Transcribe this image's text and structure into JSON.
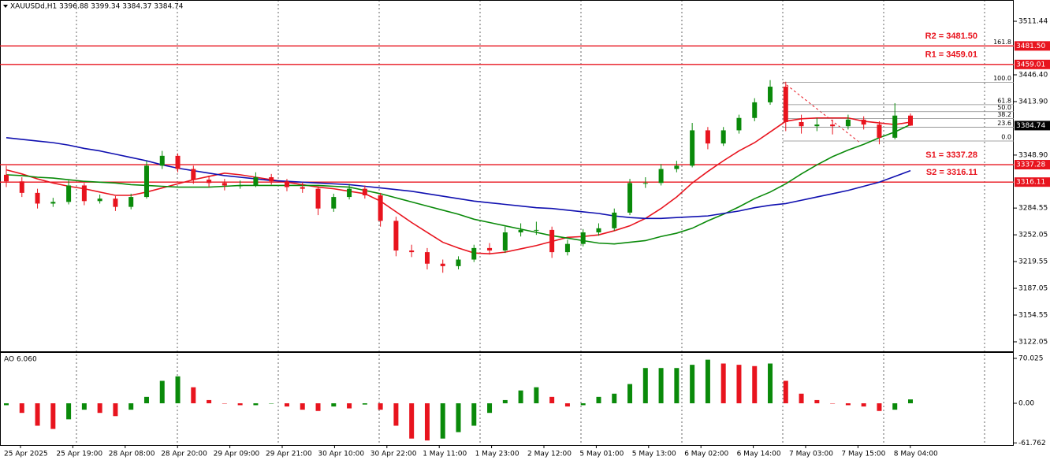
{
  "chart_data": {
    "type": "candlestick",
    "header": "XAUUSDd,H1  3396.88 3399.34 3384.37 3384.74",
    "ylim": [
      3111.5,
      3537.3
    ],
    "yticks": [
      3511.44,
      {
        "value": 3446.4,
        "label": "3446.40"
      },
      {
        "value": 3413.9,
        "label": "3413.90"
      },
      {
        "value": 3348.9,
        "label": "3348.90"
      },
      3284.55,
      3252.05,
      3219.55,
      3187.05,
      3154.55,
      3122.05
    ],
    "time_labels": [
      "25 Apr 2025",
      "25 Apr 19:00",
      "28 Apr 08:00",
      "28 Apr 20:00",
      "29 Apr 09:00",
      "29 Apr 21:00",
      "30 Apr 10:00",
      "30 Apr 22:00",
      "1 May 11:00",
      "1 May 23:00",
      "2 May 12:00",
      "5 May 01:00",
      "5 May 13:00",
      "6 May 02:00",
      "6 May 14:00",
      "7 May 03:00",
      "7 May 15:00",
      "8 May 04:00"
    ],
    "up_color": "#0a8a0a",
    "down_color": "#e8141e",
    "candles": [
      [
        3325,
        3336,
        3310,
        3317
      ],
      [
        3317,
        3322,
        3298,
        3303
      ],
      [
        3303,
        3308,
        3284,
        3290
      ],
      [
        3290,
        3297,
        3286,
        3292
      ],
      [
        3292,
        3318,
        3289,
        3312
      ],
      [
        3312,
        3315,
        3288,
        3293
      ],
      [
        3293,
        3301,
        3290,
        3296
      ],
      [
        3296,
        3299,
        3281,
        3286
      ],
      [
        3286,
        3302,
        3283,
        3298
      ],
      [
        3298,
        3342,
        3296,
        3336
      ],
      [
        3336,
        3354,
        3332,
        3348
      ],
      [
        3348,
        3351,
        3328,
        3332
      ],
      [
        3332,
        3336,
        3314,
        3319
      ],
      [
        3319,
        3324,
        3310,
        3315
      ],
      [
        3315,
        3320,
        3306,
        3312
      ],
      [
        3312,
        3318,
        3308,
        3312
      ],
      [
        3312,
        3328,
        3310,
        3322
      ],
      [
        3322,
        3326,
        3313,
        3317
      ],
      [
        3317,
        3320,
        3305,
        3310
      ],
      [
        3310,
        3316,
        3303,
        3308
      ],
      [
        3308,
        3311,
        3276,
        3284
      ],
      [
        3284,
        3302,
        3280,
        3298
      ],
      [
        3298,
        3314,
        3295,
        3308
      ],
      [
        3308,
        3312,
        3296,
        3300
      ],
      [
        3300,
        3303,
        3262,
        3269
      ],
      [
        3269,
        3274,
        3226,
        3233
      ],
      [
        3233,
        3240,
        3225,
        3231
      ],
      [
        3231,
        3236,
        3210,
        3217
      ],
      [
        3217,
        3222,
        3206,
        3214
      ],
      [
        3214,
        3226,
        3210,
        3222
      ],
      [
        3222,
        3240,
        3219,
        3236
      ],
      [
        3236,
        3242,
        3228,
        3233
      ],
      [
        3233,
        3262,
        3230,
        3255
      ],
      [
        3255,
        3266,
        3250,
        3258
      ],
      [
        3258,
        3268,
        3252,
        3258
      ],
      [
        3258,
        3262,
        3224,
        3231
      ],
      [
        3231,
        3246,
        3227,
        3241
      ],
      [
        3241,
        3259,
        3238,
        3255
      ],
      [
        3255,
        3266,
        3251,
        3260
      ],
      [
        3260,
        3284,
        3257,
        3279
      ],
      [
        3279,
        3320,
        3276,
        3315
      ],
      [
        3315,
        3322,
        3309,
        3315
      ],
      [
        3315,
        3338,
        3312,
        3332
      ],
      [
        3332,
        3342,
        3328,
        3336
      ],
      [
        3336,
        3388,
        3334,
        3379
      ],
      [
        3379,
        3383,
        3356,
        3363
      ],
      [
        3363,
        3383,
        3360,
        3379
      ],
      [
        3379,
        3398,
        3375,
        3394
      ],
      [
        3394,
        3418,
        3390,
        3413
      ],
      [
        3413,
        3440,
        3410,
        3432
      ],
      [
        3432,
        3438,
        3378,
        3389
      ],
      [
        3389,
        3398,
        3375,
        3384
      ],
      [
        3384,
        3394,
        3378,
        3386
      ],
      [
        3386,
        3392,
        3374,
        3384
      ],
      [
        3384,
        3398,
        3380,
        3392
      ],
      [
        3392,
        3396,
        3380,
        3386
      ],
      [
        3386,
        3390,
        3362,
        3370
      ],
      [
        3370,
        3412,
        3368,
        3396.88
      ],
      [
        3396.88,
        3399.34,
        3384.37,
        3384.74
      ]
    ],
    "series": [
      {
        "color": "#e8141e",
        "values": [
          3331,
          3326,
          3320,
          3315,
          3311,
          3308,
          3304,
          3300,
          3300,
          3304,
          3309,
          3314,
          3319,
          3323,
          3327,
          3325,
          3322,
          3319,
          3316,
          3313,
          3310,
          3308,
          3305,
          3302,
          3293,
          3280,
          3267,
          3255,
          3243,
          3236,
          3230,
          3229,
          3231,
          3235,
          3239,
          3244,
          3249,
          3250,
          3252,
          3257,
          3263,
          3272,
          3284,
          3298,
          3315,
          3329,
          3342,
          3354,
          3364,
          3377,
          3390,
          3393,
          3394,
          3394,
          3394,
          3390,
          3388,
          3386,
          3389
        ]
      },
      {
        "color": "#0a8a0a",
        "values": [
          3325,
          3324,
          3322,
          3321,
          3319,
          3317,
          3316,
          3315,
          3313,
          3312,
          3311,
          3310,
          3310,
          3310,
          3311,
          3312,
          3312,
          3312,
          3312,
          3312,
          3312,
          3311,
          3310,
          3306,
          3302,
          3297,
          3292,
          3287,
          3282,
          3277,
          3271,
          3267,
          3263,
          3259,
          3255,
          3251,
          3248,
          3245,
          3242,
          3241,
          3243,
          3245,
          3250,
          3254,
          3260,
          3269,
          3277,
          3286,
          3296,
          3304,
          3314,
          3326,
          3337,
          3347,
          3355,
          3362,
          3370,
          3377,
          3386
        ]
      },
      {
        "color": "#1010b0",
        "values": [
          3370,
          3368,
          3366,
          3364,
          3361,
          3357,
          3354,
          3350,
          3346,
          3342,
          3337,
          3333,
          3330,
          3327,
          3324,
          3322,
          3320,
          3318,
          3317,
          3316,
          3315,
          3314,
          3313,
          3311,
          3309,
          3307,
          3305,
          3302,
          3299,
          3296,
          3293,
          3291,
          3289,
          3287,
          3285,
          3284,
          3282,
          3280,
          3278,
          3275,
          3273,
          3272,
          3272,
          3273,
          3274,
          3275,
          3278,
          3281,
          3285,
          3288,
          3290,
          3294,
          3298,
          3302,
          3306,
          3311,
          3316,
          3323,
          3330
        ]
      }
    ],
    "levels": [
      {
        "name": "R2 = 3481.50",
        "value": 3481.5,
        "tag": "3481.50"
      },
      {
        "name": "R1 = 3459.01",
        "value": 3459.01,
        "tag": "3459.01"
      },
      {
        "name": "S1 = 3337.28",
        "value": 3337.28,
        "tag": "3337.28"
      },
      {
        "name": "S2 = 3316.11",
        "value": 3316.11,
        "tag": "3316.11"
      }
    ],
    "level_color": "#e8141e",
    "last_price": {
      "value": 3384.74,
      "label": "3384.74"
    },
    "fibonacci": {
      "low": 3366,
      "high": 3437.4,
      "levels": [
        {
          "value": 0,
          "label": "0.0"
        },
        23.6,
        38.2,
        {
          "value": 50,
          "label": "50.0"
        },
        61.8,
        {
          "value": 100,
          "label": "100.0"
        },
        161.8
      ]
    },
    "ao": {
      "title": "AO 6.060",
      "ylim": [
        -65.1,
        78.6
      ],
      "yticks": [
        70.025,
        {
          "value": 0,
          "label": "0.00"
        },
        -61.762
      ],
      "values": [
        -3,
        -15,
        -35,
        -40,
        -25,
        -10,
        -15,
        -20,
        -10,
        10,
        35,
        42,
        25,
        5,
        0,
        -3,
        -3,
        0,
        -5,
        -10,
        -12,
        -5,
        -8,
        -2,
        -10,
        -35,
        -55,
        -58,
        -55,
        -45,
        -35,
        -15,
        5,
        20,
        25,
        10,
        -5,
        -3,
        10,
        15,
        30,
        55,
        55,
        55,
        60,
        68,
        62,
        60,
        58,
        62,
        35,
        15,
        5,
        0,
        -3,
        -5,
        -12,
        -10,
        6.06
      ]
    }
  }
}
